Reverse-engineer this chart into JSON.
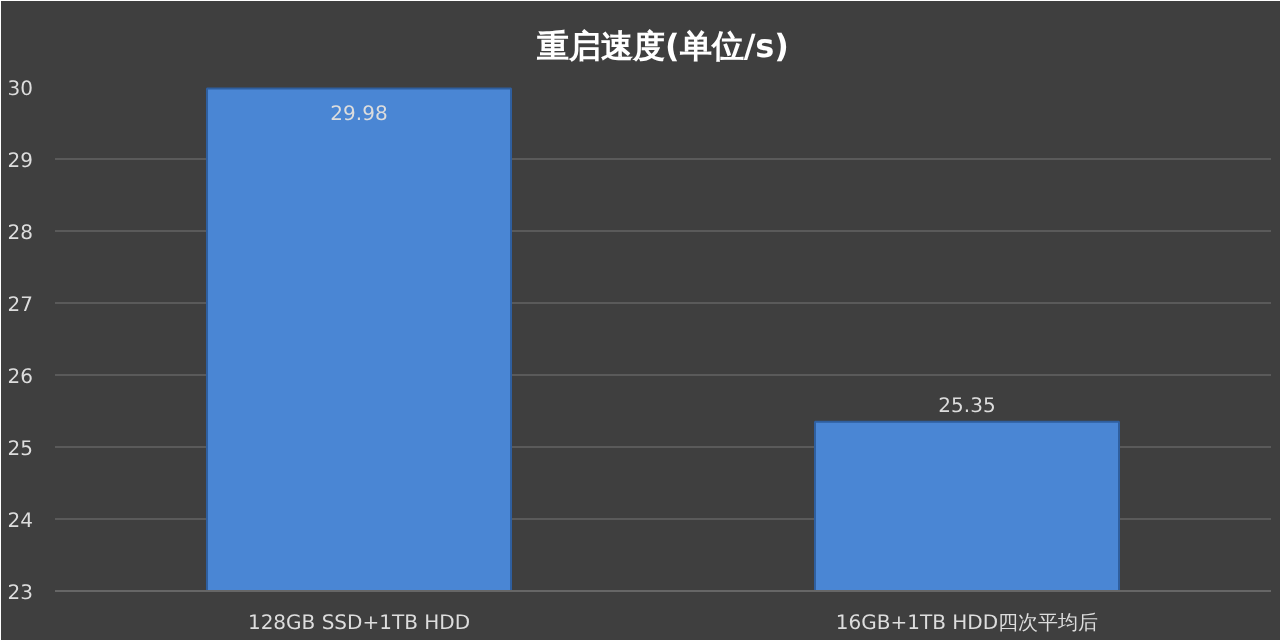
{
  "chart_data": {
    "type": "bar",
    "title": "重启速度(单位/s)",
    "categories": [
      "128GB SSD+1TB HDD",
      "16GB+1TB HDD四次平均后"
    ],
    "values": [
      29.98,
      25.35
    ],
    "color": "#4a86d4",
    "data_labels": true,
    "ylim": [
      23,
      30
    ],
    "yticks": [
      23,
      24,
      25,
      26,
      27,
      28,
      29,
      30
    ],
    "grid": "y"
  }
}
